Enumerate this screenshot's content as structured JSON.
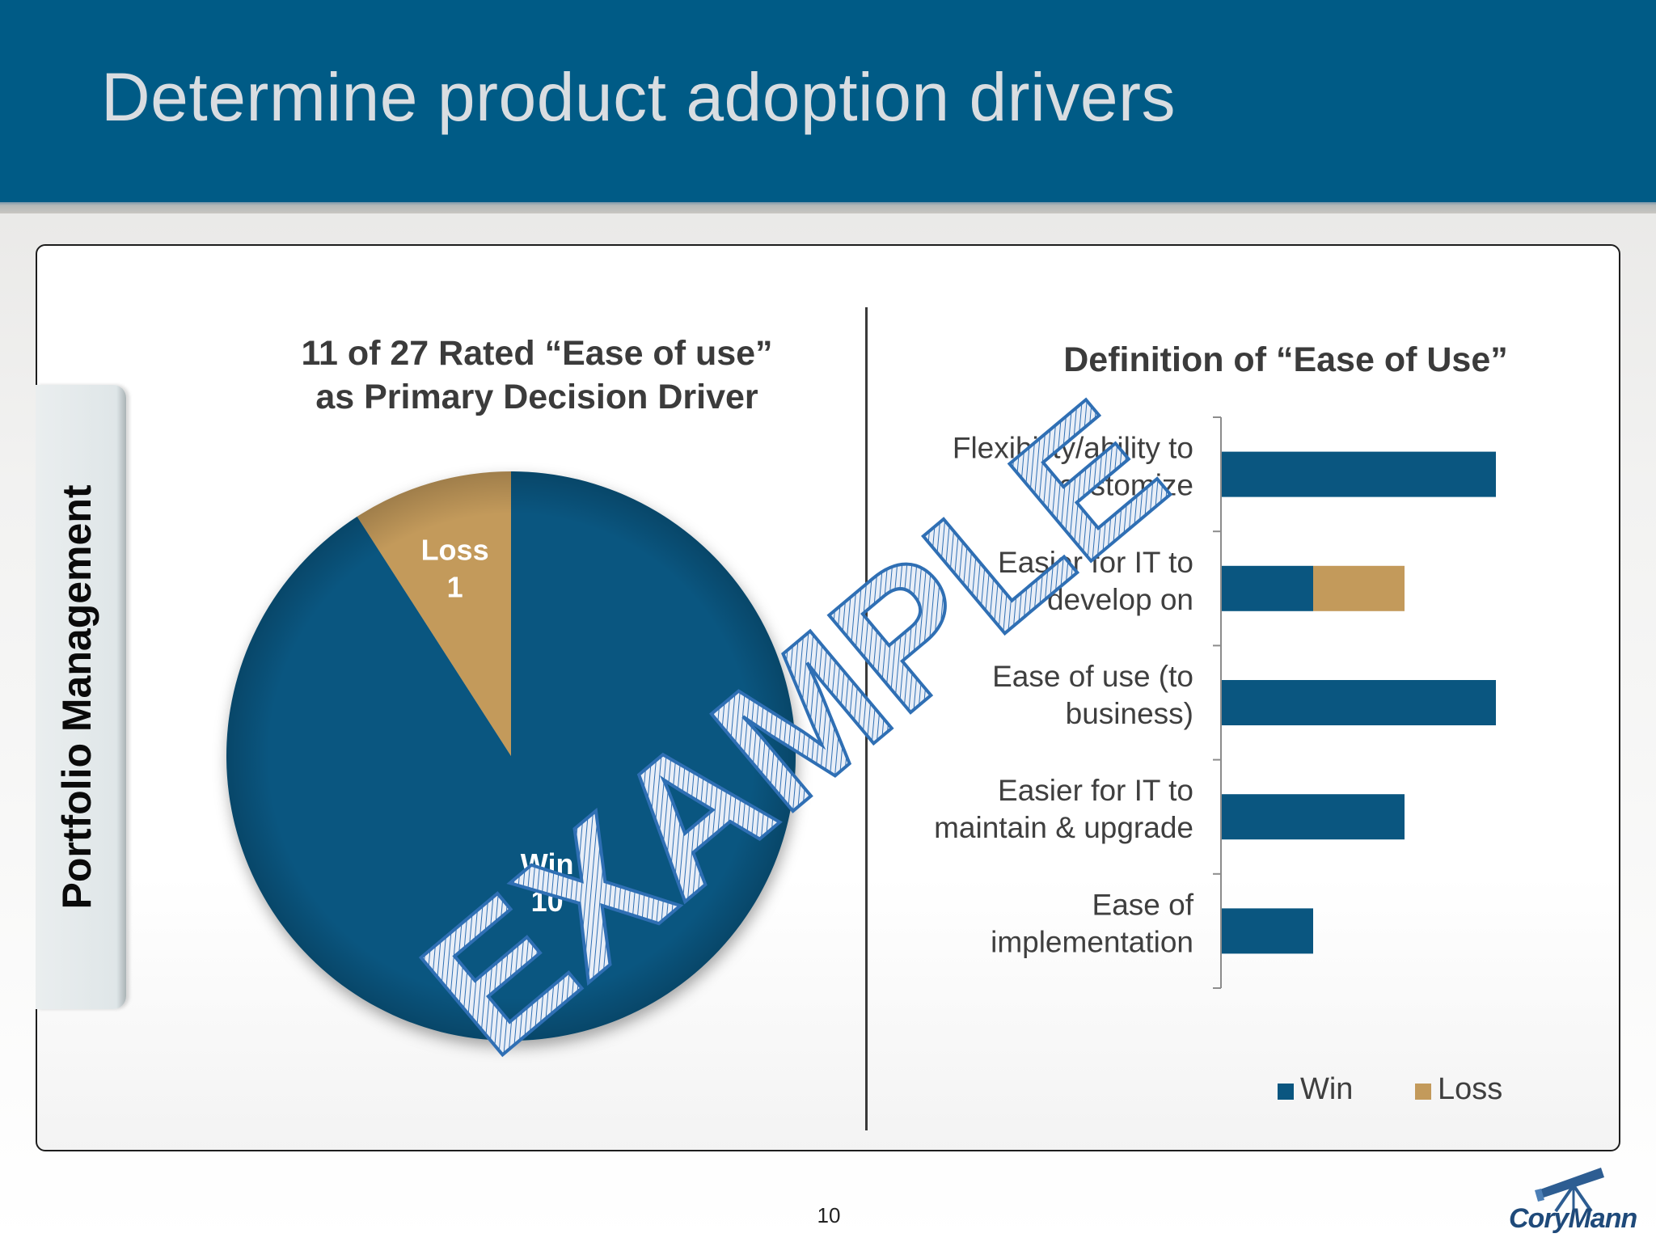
{
  "slide": {
    "title": "Determine product adoption drivers",
    "side_label": "Portfolio Management",
    "page_number": "10",
    "logo_text": "CoryMann",
    "watermark": "EXAMPLE"
  },
  "colors": {
    "header": "#005b86",
    "win": "#0a5680",
    "loss": "#c39a5b",
    "watermark": "#2f6fb4"
  },
  "chart_data": [
    {
      "type": "pie",
      "title": [
        "11 of 27 Rated “Ease of use”",
        "as Primary Decision Driver"
      ],
      "slices": [
        {
          "label": "Win",
          "value": 10,
          "color": "#0a5680"
        },
        {
          "label": "Loss",
          "value": 1,
          "color": "#c39a5b"
        }
      ]
    },
    {
      "type": "bar",
      "orientation": "horizontal",
      "stacked": true,
      "title": "Definition of “Ease of Use”",
      "categories": [
        [
          "Flexibility/ability to",
          "customize"
        ],
        [
          "Easier for IT to",
          "develop on"
        ],
        [
          "Ease of use (to",
          "business)"
        ],
        [
          "Easier for IT to",
          "maintain & upgrade"
        ],
        [
          "Ease of",
          "implementation"
        ]
      ],
      "series": [
        {
          "name": "Win",
          "values": [
            3,
            1,
            3,
            2,
            1
          ],
          "color": "#0a5680"
        },
        {
          "name": "Loss",
          "values": [
            0,
            1,
            0,
            0,
            0
          ],
          "color": "#c39a5b"
        }
      ],
      "xlim": [
        0,
        3
      ],
      "legend": "bottom-right"
    }
  ]
}
